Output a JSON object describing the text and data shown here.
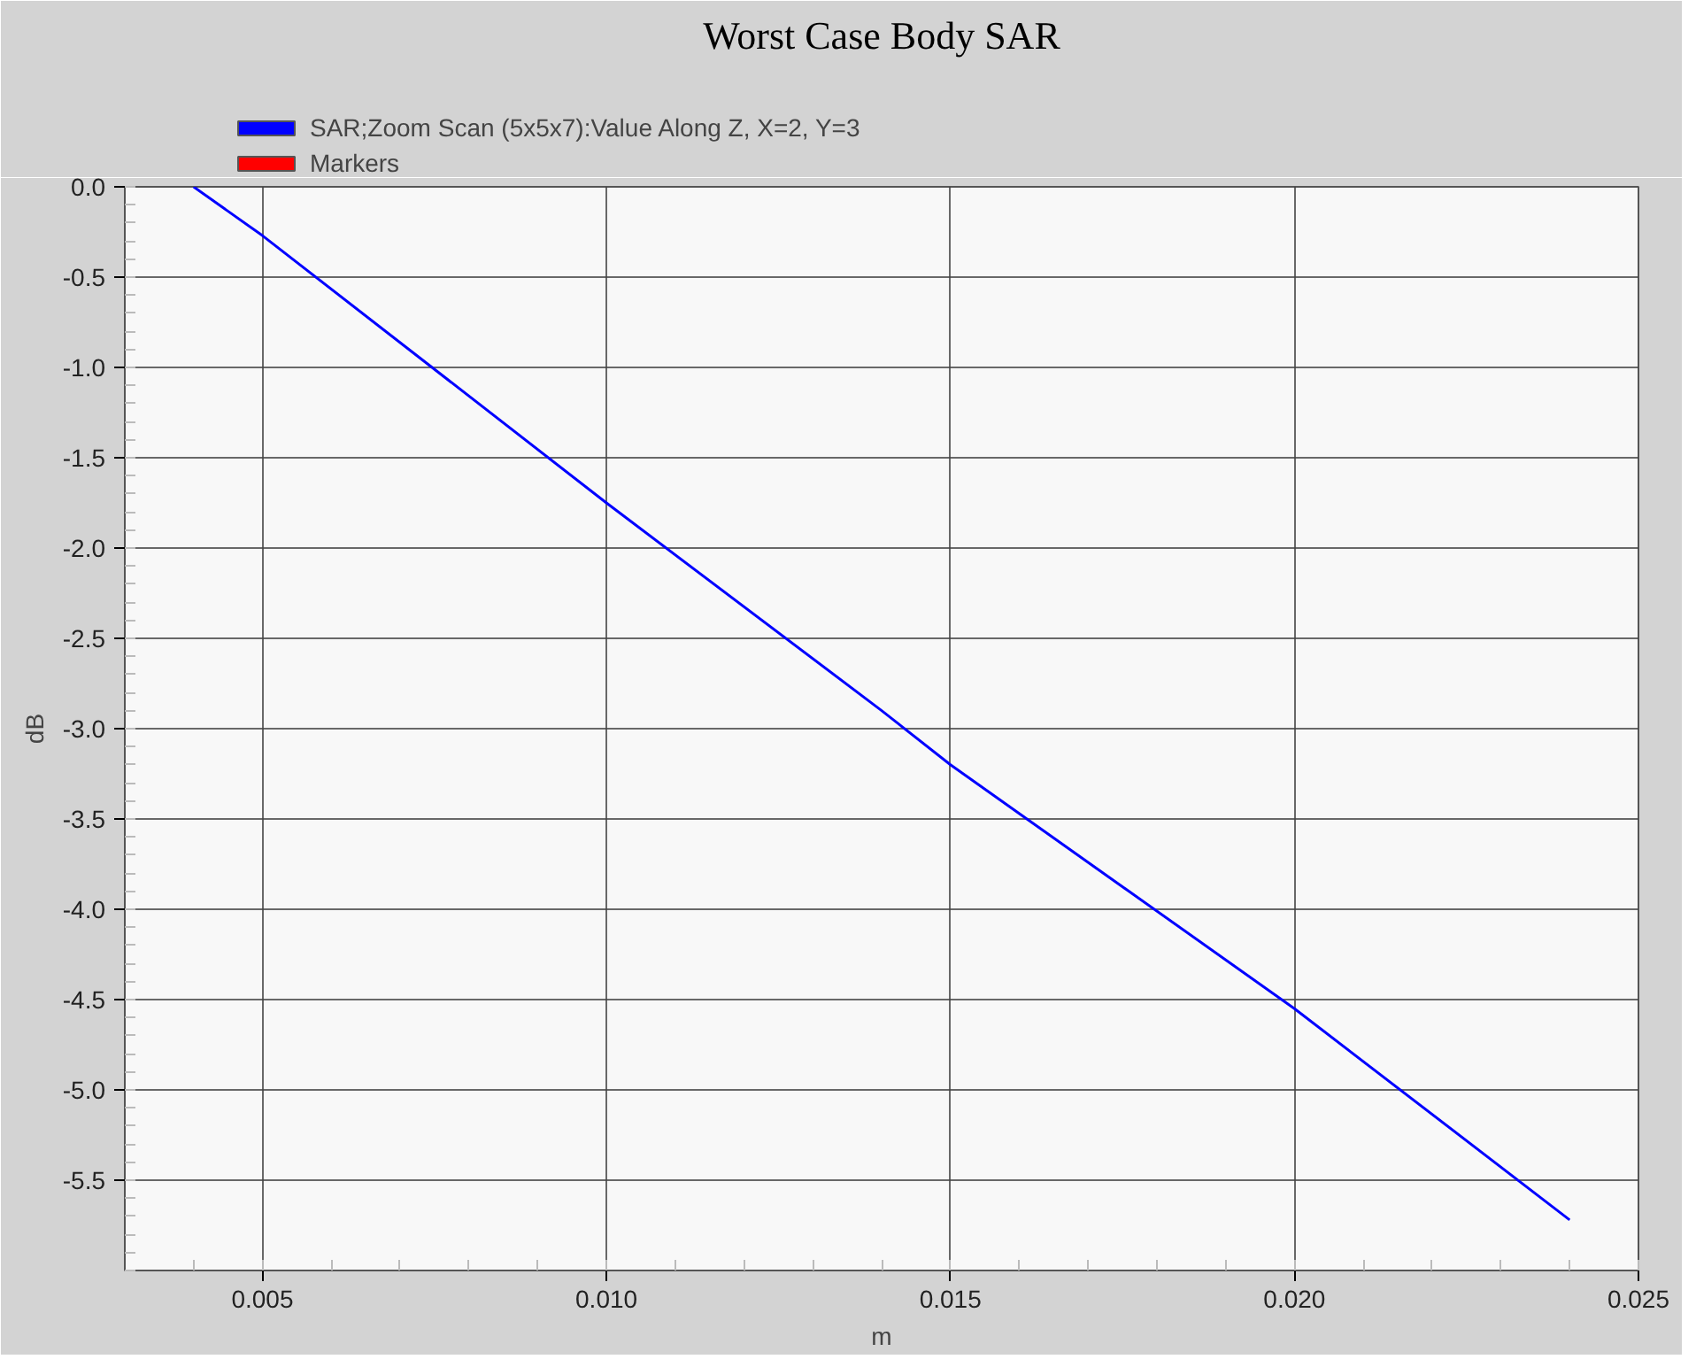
{
  "chart_data": {
    "type": "line",
    "title": "Worst Case Body SAR",
    "xlabel": "m",
    "ylabel": "dB",
    "x": [
      0.004,
      0.005,
      0.01,
      0.014,
      0.015,
      0.02,
      0.024
    ],
    "series": [
      {
        "name": "SAR;Zoom Scan (5x5x7):Value Along Z, X=2, Y=3",
        "color": "#0000ff",
        "values": [
          0.0,
          -0.27,
          -1.75,
          -2.9,
          -3.2,
          -4.55,
          -5.72
        ]
      },
      {
        "name": "Markers",
        "color": "#ff0000",
        "values": [
          null,
          null,
          null,
          null,
          null,
          null,
          null
        ]
      }
    ],
    "xlim": [
      0.003,
      0.025
    ],
    "xticks": [
      {
        "value": 0.005,
        "label": "0.005"
      },
      {
        "value": 0.01,
        "label": "0.010"
      },
      {
        "value": 0.015,
        "label": "0.015"
      },
      {
        "value": 0.02,
        "label": "0.020"
      },
      {
        "value": 0.025,
        "label": "0.025"
      }
    ],
    "ylim": [
      -6.0,
      0.0
    ],
    "yticks": [
      {
        "value": 0,
        "label": "0.0"
      },
      -0.5,
      {
        "value": -1,
        "label": "-1.0"
      },
      -1.5,
      {
        "value": -2,
        "label": "-2.0"
      },
      -2.5,
      {
        "value": -3,
        "label": "-3.0"
      },
      -3.5,
      {
        "value": -4,
        "label": "-4.0"
      },
      -4.5,
      {
        "value": -5,
        "label": "-5.0"
      },
      -5.5
    ],
    "grid": true,
    "legend": "top left",
    "marker": "none",
    "line_style": "solid"
  }
}
